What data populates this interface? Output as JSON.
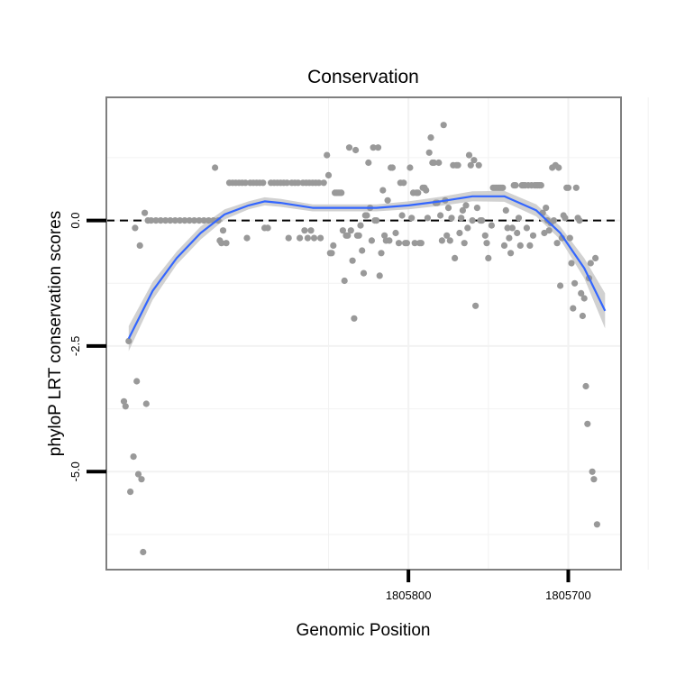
{
  "chart_data": {
    "type": "scatter",
    "title": "Conservation",
    "xlabel": "Genomic Position",
    "ylabel": "phyloP LRT conservation scores",
    "x_reversed": true,
    "xlim": [
      1805989,
      1805667
    ],
    "ylim": [
      -6.95,
      2.45
    ],
    "x_ticks": [
      1805800,
      1805700
    ],
    "x_tick_labels": [
      "1805800",
      "1805700"
    ],
    "x_minor_ticks": [
      1805850,
      1805750,
      1805650
    ],
    "y_ticks": [
      0.0,
      -2.5,
      -5.0
    ],
    "y_tick_labels": [
      "0.0",
      "-2.5",
      "-5.0"
    ],
    "y_minor_ticks": [
      1.25,
      -1.25,
      -3.75,
      -6.25
    ],
    "reference_line": {
      "y": 0,
      "style": "dashed"
    },
    "grid": true,
    "colors": {
      "points": "#999999",
      "smooth_line": "#3366ff",
      "confidence_band": "#cccccc",
      "panel_border": "#7f7f7f",
      "grid": "#f2f2f2"
    },
    "points": [
      {
        "x": 1805978,
        "y": -3.6
      },
      {
        "x": 1805977,
        "y": -3.7
      },
      {
        "x": 1805975,
        "y": -2.4
      },
      {
        "x": 1805974,
        "y": -5.4
      },
      {
        "x": 1805972,
        "y": -4.7
      },
      {
        "x": 1805971,
        "y": -0.15
      },
      {
        "x": 1805970,
        "y": -3.2
      },
      {
        "x": 1805969,
        "y": -5.05
      },
      {
        "x": 1805968,
        "y": -0.5
      },
      {
        "x": 1805967,
        "y": -5.15
      },
      {
        "x": 1805966,
        "y": -6.6
      },
      {
        "x": 1805965,
        "y": 0.15
      },
      {
        "x": 1805964,
        "y": -3.65
      },
      {
        "x": 1805963,
        "y": 0.0
      },
      {
        "x": 1805961,
        "y": 0.0
      },
      {
        "x": 1805958,
        "y": 0.0
      },
      {
        "x": 1805955,
        "y": 0.0
      },
      {
        "x": 1805952,
        "y": 0.0
      },
      {
        "x": 1805949,
        "y": 0.0
      },
      {
        "x": 1805946,
        "y": 0.0
      },
      {
        "x": 1805943,
        "y": 0.0
      },
      {
        "x": 1805940,
        "y": 0.0
      },
      {
        "x": 1805937,
        "y": 0.0
      },
      {
        "x": 1805934,
        "y": 0.0
      },
      {
        "x": 1805931,
        "y": 0.0
      },
      {
        "x": 1805928,
        "y": 0.0
      },
      {
        "x": 1805925,
        "y": 0.0
      },
      {
        "x": 1805922,
        "y": 0.0
      },
      {
        "x": 1805921,
        "y": 1.05
      },
      {
        "x": 1805919,
        "y": 0.0
      },
      {
        "x": 1805918,
        "y": -0.4
      },
      {
        "x": 1805917,
        "y": -0.45
      },
      {
        "x": 1805916,
        "y": -0.2
      },
      {
        "x": 1805914,
        "y": -0.45
      },
      {
        "x": 1805912,
        "y": 0.75
      },
      {
        "x": 1805910,
        "y": 0.75
      },
      {
        "x": 1805908,
        "y": 0.75
      },
      {
        "x": 1805906,
        "y": 0.75
      },
      {
        "x": 1805904,
        "y": 0.75
      },
      {
        "x": 1805902,
        "y": 0.75
      },
      {
        "x": 1805901,
        "y": -0.35
      },
      {
        "x": 1805899,
        "y": 0.75
      },
      {
        "x": 1805897,
        "y": 0.75
      },
      {
        "x": 1805895,
        "y": 0.75
      },
      {
        "x": 1805893,
        "y": 0.75
      },
      {
        "x": 1805891,
        "y": 0.75
      },
      {
        "x": 1805890,
        "y": -0.15
      },
      {
        "x": 1805888,
        "y": -0.15
      },
      {
        "x": 1805886,
        "y": 0.75
      },
      {
        "x": 1805884,
        "y": 0.75
      },
      {
        "x": 1805882,
        "y": 0.75
      },
      {
        "x": 1805880,
        "y": 0.75
      },
      {
        "x": 1805878,
        "y": 0.75
      },
      {
        "x": 1805876,
        "y": 0.75
      },
      {
        "x": 1805875,
        "y": -0.35
      },
      {
        "x": 1805873,
        "y": 0.75
      },
      {
        "x": 1805871,
        "y": 0.75
      },
      {
        "x": 1805869,
        "y": 0.75
      },
      {
        "x": 1805868,
        "y": -0.35
      },
      {
        "x": 1805866,
        "y": 0.75
      },
      {
        "x": 1805865,
        "y": -0.2
      },
      {
        "x": 1805864,
        "y": 0.75
      },
      {
        "x": 1805863,
        "y": -0.35
      },
      {
        "x": 1805862,
        "y": 0.75
      },
      {
        "x": 1805861,
        "y": -0.2
      },
      {
        "x": 1805860,
        "y": 0.75
      },
      {
        "x": 1805859,
        "y": -0.35
      },
      {
        "x": 1805858,
        "y": 0.75
      },
      {
        "x": 1805856,
        "y": 0.75
      },
      {
        "x": 1805855,
        "y": -0.35
      },
      {
        "x": 1805853,
        "y": 0.75
      },
      {
        "x": 1805851,
        "y": 1.3
      },
      {
        "x": 1805850,
        "y": 0.9
      },
      {
        "x": 1805849,
        "y": -0.65
      },
      {
        "x": 1805848,
        "y": -0.65
      },
      {
        "x": 1805847,
        "y": -0.5
      },
      {
        "x": 1805846,
        "y": 0.55
      },
      {
        "x": 1805845,
        "y": 0.55
      },
      {
        "x": 1805844,
        "y": 0.55
      },
      {
        "x": 1805843,
        "y": 0.55
      },
      {
        "x": 1805842,
        "y": 0.55
      },
      {
        "x": 1805841,
        "y": -0.2
      },
      {
        "x": 1805840,
        "y": -1.2
      },
      {
        "x": 1805839,
        "y": -0.3
      },
      {
        "x": 1805838,
        "y": -0.3
      },
      {
        "x": 1805837,
        "y": 1.45
      },
      {
        "x": 1805836,
        "y": -0.2
      },
      {
        "x": 1805835,
        "y": -0.8
      },
      {
        "x": 1805834,
        "y": -1.95
      },
      {
        "x": 1805833,
        "y": 1.4
      },
      {
        "x": 1805832,
        "y": -0.3
      },
      {
        "x": 1805831,
        "y": -0.3
      },
      {
        "x": 1805830,
        "y": -0.1
      },
      {
        "x": 1805829,
        "y": -0.6
      },
      {
        "x": 1805828,
        "y": -1.05
      },
      {
        "x": 1805827,
        "y": 0.1
      },
      {
        "x": 1805826,
        "y": 0.1
      },
      {
        "x": 1805825,
        "y": 1.15
      },
      {
        "x": 1805824,
        "y": 0.25
      },
      {
        "x": 1805823,
        "y": -0.4
      },
      {
        "x": 1805822,
        "y": 1.45
      },
      {
        "x": 1805821,
        "y": 0.0
      },
      {
        "x": 1805820,
        "y": 0.0
      },
      {
        "x": 1805819,
        "y": 1.45
      },
      {
        "x": 1805818,
        "y": -1.1
      },
      {
        "x": 1805817,
        "y": -0.65
      },
      {
        "x": 1805816,
        "y": 0.6
      },
      {
        "x": 1805815,
        "y": -0.3
      },
      {
        "x": 1805814,
        "y": -0.4
      },
      {
        "x": 1805813,
        "y": 0.4
      },
      {
        "x": 1805812,
        "y": -0.4
      },
      {
        "x": 1805811,
        "y": 1.05
      },
      {
        "x": 1805810,
        "y": 1.05
      },
      {
        "x": 1805808,
        "y": -0.25
      },
      {
        "x": 1805806,
        "y": -0.45
      },
      {
        "x": 1805805,
        "y": 0.75
      },
      {
        "x": 1805804,
        "y": 0.1
      },
      {
        "x": 1805803,
        "y": 0.75
      },
      {
        "x": 1805802,
        "y": -0.45
      },
      {
        "x": 1805801,
        "y": -0.45
      },
      {
        "x": 1805799,
        "y": 1.05
      },
      {
        "x": 1805798,
        "y": 0.05
      },
      {
        "x": 1805797,
        "y": 0.55
      },
      {
        "x": 1805796,
        "y": -0.45
      },
      {
        "x": 1805795,
        "y": 0.55
      },
      {
        "x": 1805794,
        "y": 0.55
      },
      {
        "x": 1805793,
        "y": -0.45
      },
      {
        "x": 1805792,
        "y": -0.45
      },
      {
        "x": 1805791,
        "y": 0.65
      },
      {
        "x": 1805790,
        "y": 0.65
      },
      {
        "x": 1805789,
        "y": 0.6
      },
      {
        "x": 1805788,
        "y": 0.05
      },
      {
        "x": 1805787,
        "y": 1.35
      },
      {
        "x": 1805786,
        "y": 1.65
      },
      {
        "x": 1805785,
        "y": 1.15
      },
      {
        "x": 1805784,
        "y": 1.15
      },
      {
        "x": 1805783,
        "y": 0.35
      },
      {
        "x": 1805782,
        "y": 0.35
      },
      {
        "x": 1805781,
        "y": 1.15
      },
      {
        "x": 1805780,
        "y": 0.1
      },
      {
        "x": 1805779,
        "y": -0.4
      },
      {
        "x": 1805778,
        "y": 1.9
      },
      {
        "x": 1805777,
        "y": 0.4
      },
      {
        "x": 1805776,
        "y": -0.3
      },
      {
        "x": 1805775,
        "y": 0.25
      },
      {
        "x": 1805774,
        "y": -0.4
      },
      {
        "x": 1805773,
        "y": 0.05
      },
      {
        "x": 1805772,
        "y": 1.1
      },
      {
        "x": 1805771,
        "y": -0.75
      },
      {
        "x": 1805770,
        "y": 1.1
      },
      {
        "x": 1805769,
        "y": 1.1
      },
      {
        "x": 1805768,
        "y": -0.25
      },
      {
        "x": 1805767,
        "y": 0.05
      },
      {
        "x": 1805766,
        "y": 0.2
      },
      {
        "x": 1805765,
        "y": -0.45
      },
      {
        "x": 1805764,
        "y": 0.3
      },
      {
        "x": 1805763,
        "y": -0.15
      },
      {
        "x": 1805762,
        "y": 1.3
      },
      {
        "x": 1805761,
        "y": 1.1
      },
      {
        "x": 1805760,
        "y": 0.0
      },
      {
        "x": 1805759,
        "y": 1.2
      },
      {
        "x": 1805758,
        "y": -1.7
      },
      {
        "x": 1805757,
        "y": 0.25
      },
      {
        "x": 1805756,
        "y": 1.1
      },
      {
        "x": 1805755,
        "y": 0.0
      },
      {
        "x": 1805754,
        "y": 0.0
      },
      {
        "x": 1805752,
        "y": -0.3
      },
      {
        "x": 1805751,
        "y": -0.45
      },
      {
        "x": 1805750,
        "y": -0.75
      },
      {
        "x": 1805748,
        "y": -0.1
      },
      {
        "x": 1805747,
        "y": 0.65
      },
      {
        "x": 1805746,
        "y": 0.65
      },
      {
        "x": 1805745,
        "y": 0.65
      },
      {
        "x": 1805744,
        "y": 0.65
      },
      {
        "x": 1805743,
        "y": 0.65
      },
      {
        "x": 1805742,
        "y": 0.65
      },
      {
        "x": 1805741,
        "y": 0.65
      },
      {
        "x": 1805740,
        "y": -0.5
      },
      {
        "x": 1805739,
        "y": 0.2
      },
      {
        "x": 1805738,
        "y": -0.15
      },
      {
        "x": 1805737,
        "y": -0.35
      },
      {
        "x": 1805736,
        "y": -0.65
      },
      {
        "x": 1805735,
        "y": -0.15
      },
      {
        "x": 1805734,
        "y": 0.7
      },
      {
        "x": 1805733,
        "y": 0.7
      },
      {
        "x": 1805732,
        "y": -0.25
      },
      {
        "x": 1805731,
        "y": 0.05
      },
      {
        "x": 1805730,
        "y": -0.5
      },
      {
        "x": 1805729,
        "y": 0.7
      },
      {
        "x": 1805728,
        "y": 0.7
      },
      {
        "x": 1805727,
        "y": 0.7
      },
      {
        "x": 1805726,
        "y": -0.15
      },
      {
        "x": 1805725,
        "y": 0.7
      },
      {
        "x": 1805724,
        "y": -0.5
      },
      {
        "x": 1805723,
        "y": 0.7
      },
      {
        "x": 1805722,
        "y": -0.3
      },
      {
        "x": 1805721,
        "y": 0.7
      },
      {
        "x": 1805720,
        "y": 0.7
      },
      {
        "x": 1805719,
        "y": 0.7
      },
      {
        "x": 1805718,
        "y": 0.7
      },
      {
        "x": 1805717,
        "y": 0.7
      },
      {
        "x": 1805716,
        "y": 0.15
      },
      {
        "x": 1805715,
        "y": -0.25
      },
      {
        "x": 1805714,
        "y": 0.25
      },
      {
        "x": 1805713,
        "y": 0.0
      },
      {
        "x": 1805712,
        "y": -0.2
      },
      {
        "x": 1805711,
        "y": -0.05
      },
      {
        "x": 1805710,
        "y": 1.05
      },
      {
        "x": 1805709,
        "y": 0.0
      },
      {
        "x": 1805708,
        "y": 1.1
      },
      {
        "x": 1805707,
        "y": -0.45
      },
      {
        "x": 1805706,
        "y": 1.05
      },
      {
        "x": 1805705,
        "y": -1.3
      },
      {
        "x": 1805704,
        "y": -0.35
      },
      {
        "x": 1805703,
        "y": 0.1
      },
      {
        "x": 1805702,
        "y": 0.05
      },
      {
        "x": 1805701,
        "y": 0.65
      },
      {
        "x": 1805700,
        "y": 0.65
      },
      {
        "x": 1805699,
        "y": -0.35
      },
      {
        "x": 1805698,
        "y": -0.85
      },
      {
        "x": 1805697,
        "y": -1.75
      },
      {
        "x": 1805696,
        "y": -1.25
      },
      {
        "x": 1805695,
        "y": 0.65
      },
      {
        "x": 1805694,
        "y": 0.05
      },
      {
        "x": 1805693,
        "y": 0.0
      },
      {
        "x": 1805692,
        "y": -1.45
      },
      {
        "x": 1805691,
        "y": -1.9
      },
      {
        "x": 1805690,
        "y": -1.55
      },
      {
        "x": 1805689,
        "y": -3.3
      },
      {
        "x": 1805688,
        "y": -4.05
      },
      {
        "x": 1805687,
        "y": -1.15
      },
      {
        "x": 1805686,
        "y": -0.85
      },
      {
        "x": 1805685,
        "y": -5.0
      },
      {
        "x": 1805684,
        "y": -5.15
      },
      {
        "x": 1805683,
        "y": -0.75
      },
      {
        "x": 1805682,
        "y": -6.05
      }
    ],
    "smooth_fit": {
      "x": [
        1805975,
        1805960,
        1805945,
        1805930,
        1805915,
        1805900,
        1805890,
        1805880,
        1805860,
        1805840,
        1805820,
        1805800,
        1805780,
        1805760,
        1805740,
        1805720,
        1805705,
        1805690,
        1805677
      ],
      "y": [
        -2.35,
        -1.4,
        -0.75,
        -0.25,
        0.12,
        0.3,
        0.38,
        0.35,
        0.25,
        0.25,
        0.25,
        0.3,
        0.38,
        0.48,
        0.48,
        0.2,
        -0.25,
        -0.95,
        -1.8
      ],
      "lower": [
        -2.6,
        -1.58,
        -0.88,
        -0.38,
        0.02,
        0.22,
        0.3,
        0.27,
        0.18,
        0.18,
        0.18,
        0.22,
        0.29,
        0.38,
        0.37,
        0.08,
        -0.38,
        -1.15,
        -2.15
      ],
      "upper": [
        -2.1,
        -1.22,
        -0.62,
        -0.12,
        0.22,
        0.38,
        0.46,
        0.43,
        0.32,
        0.32,
        0.32,
        0.38,
        0.47,
        0.58,
        0.59,
        0.32,
        -0.12,
        -0.75,
        -1.45
      ]
    }
  }
}
